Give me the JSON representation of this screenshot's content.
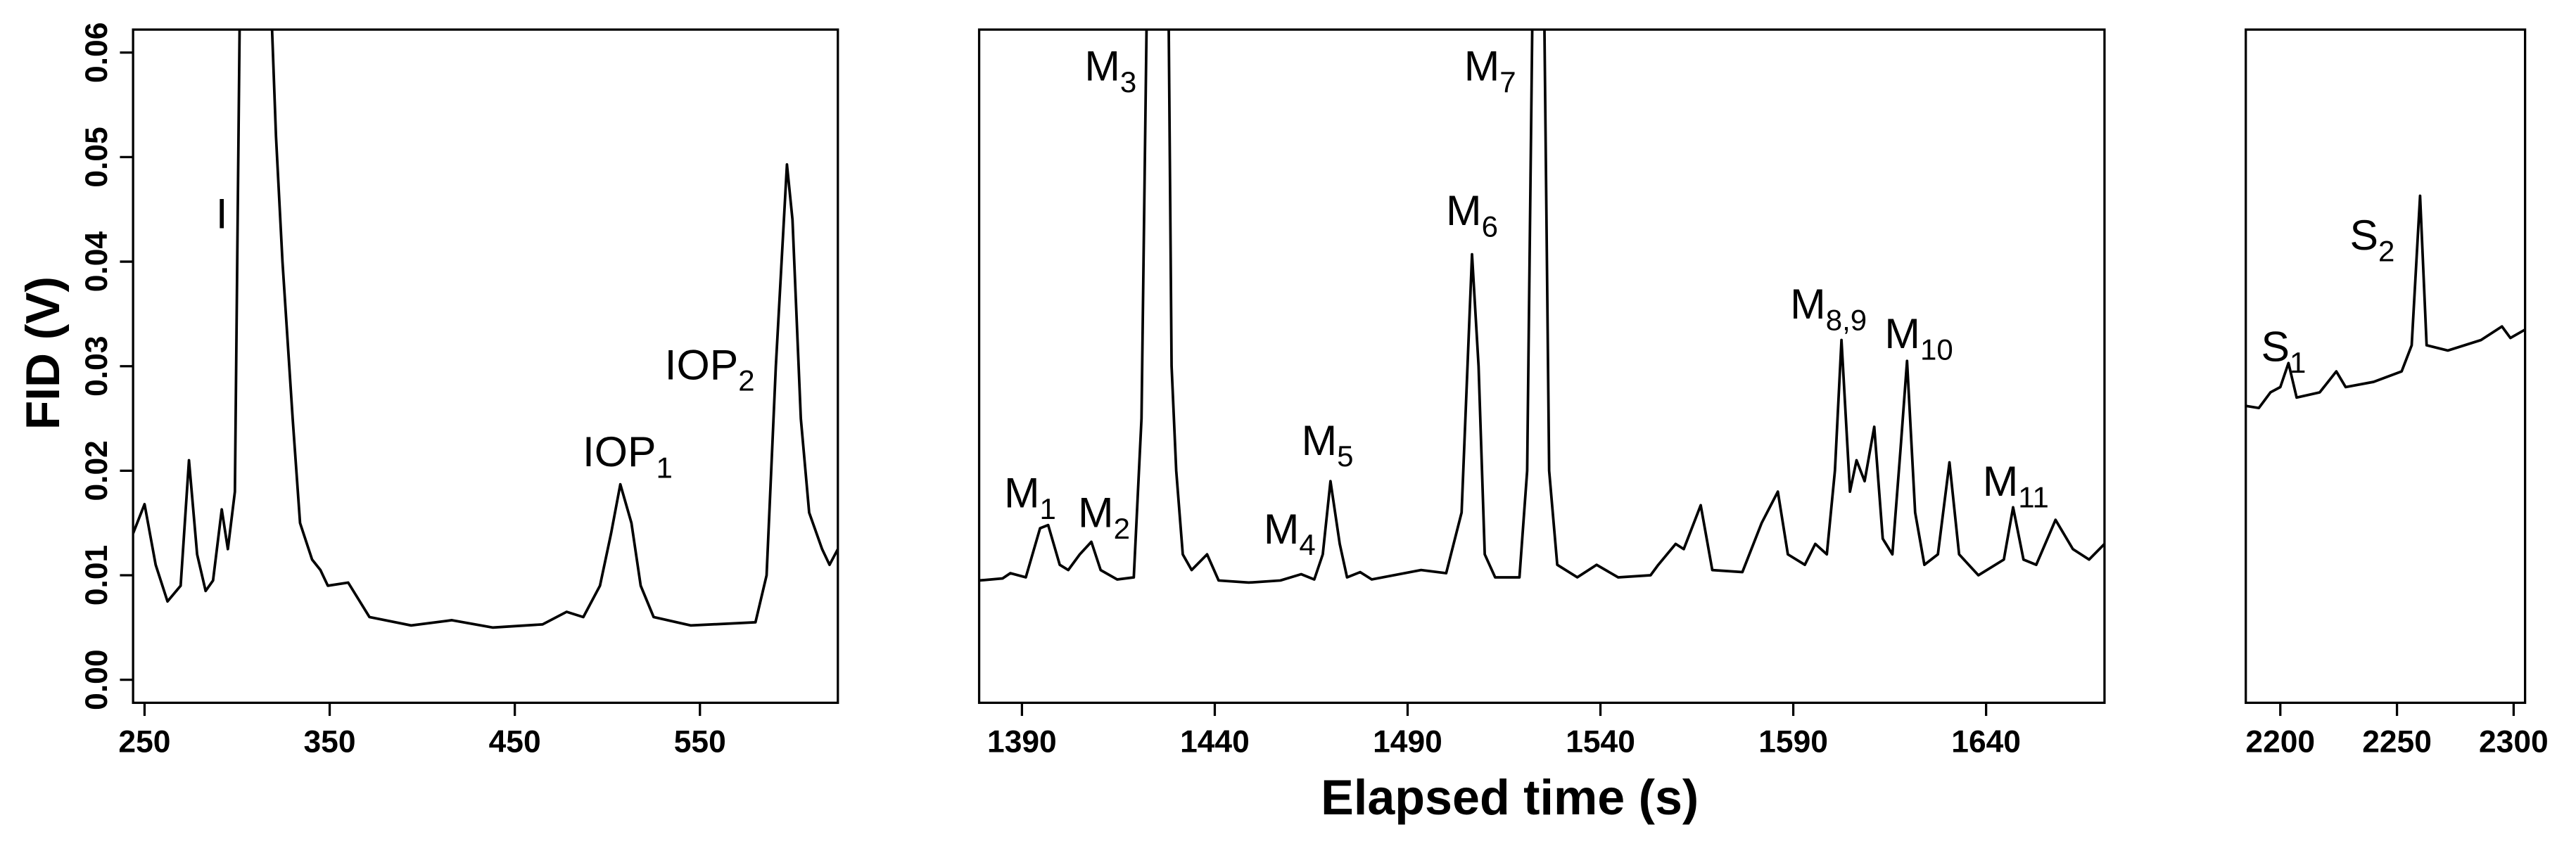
{
  "chart_data": [
    {
      "type": "line",
      "color": "#000000",
      "ylabel": "FID (V)",
      "xlim": [
        243.8,
        624.5
      ],
      "xticks": [
        250,
        350,
        450,
        550
      ],
      "ylim": [
        -0.0022,
        0.0622
      ],
      "yticks": [
        {
          "value": 0,
          "label": "0.00"
        },
        0.01,
        0.02,
        0.03,
        0.04,
        0.05,
        0.06
      ],
      "x": [
        243.8,
        250,
        256,
        262.4,
        269.5,
        274,
        278.4,
        283,
        287,
        291.7,
        295,
        298.8,
        301.5,
        318.3,
        321,
        324.5,
        330,
        334,
        340.5,
        345,
        349,
        360,
        371.5,
        394,
        416,
        438,
        465,
        478,
        487,
        496,
        502,
        507,
        513,
        518,
        525,
        545,
        580,
        586,
        591,
        597,
        600,
        604.5,
        609,
        616,
        620,
        624.5
      ],
      "values": [
        0.014,
        0.0168,
        0.011,
        0.0075,
        0.009,
        0.021,
        0.012,
        0.0085,
        0.0095,
        0.0163,
        0.0125,
        0.018,
        0.065,
        0.065,
        0.052,
        0.04,
        0.025,
        0.015,
        0.0115,
        0.0105,
        0.009,
        0.0093,
        0.006,
        0.0052,
        0.0057,
        0.005,
        0.0053,
        0.0065,
        0.006,
        0.009,
        0.014,
        0.0187,
        0.015,
        0.009,
        0.006,
        0.0052,
        0.0055,
        0.01,
        0.03,
        0.0493,
        0.044,
        0.025,
        0.016,
        0.0125,
        0.011,
        0.0125
      ],
      "annotations": [
        {
          "text": "I"
        },
        {
          "text": "IOP",
          "sub": "1"
        },
        {
          "text": "IOP",
          "sub": "2"
        }
      ]
    },
    {
      "type": "line",
      "color": "#000000",
      "xlabel": "Elapsed time (s)",
      "xlim": [
        1378.9,
        1670.7
      ],
      "xticks": [
        1390,
        1440,
        1490,
        1540,
        1590,
        1640
      ],
      "ylim": [
        -0.0022,
        0.0622
      ],
      "x": [
        1378.9,
        1385,
        1387,
        1391,
        1394.7,
        1396.8,
        1399.8,
        1402,
        1405,
        1408,
        1410.4,
        1414.7,
        1419,
        1421,
        1422.4,
        1428,
        1428.8,
        1430,
        1431.7,
        1434,
        1438,
        1441,
        1448.8,
        1457,
        1462.4,
        1465.8,
        1468,
        1470,
        1472.4,
        1474.3,
        1477.7,
        1480.7,
        1493.5,
        1500,
        1504,
        1506.7,
        1508.4,
        1510,
        1512.7,
        1519,
        1521,
        1522.4,
        1525.4,
        1526.7,
        1528.8,
        1534,
        1539,
        1544.6,
        1553,
        1555,
        1559.5,
        1561.6,
        1566,
        1569,
        1576.8,
        1581.8,
        1586,
        1588.6,
        1593,
        1595.7,
        1598.7,
        1600.8,
        1602.5,
        1604.7,
        1606.4,
        1608.5,
        1611,
        1613.2,
        1615.7,
        1617.8,
        1619.5,
        1621.6,
        1624,
        1627.5,
        1630.5,
        1633,
        1638,
        1644.6,
        1647,
        1649.7,
        1653,
        1658,
        1662.5,
        1666.7,
        1670.7
      ],
      "values": [
        0.0095,
        0.0097,
        0.0102,
        0.0098,
        0.0145,
        0.0148,
        0.011,
        0.0105,
        0.012,
        0.0132,
        0.0105,
        0.0096,
        0.0098,
        0.025,
        0.065,
        0.065,
        0.03,
        0.02,
        0.012,
        0.0105,
        0.012,
        0.0095,
        0.0093,
        0.0095,
        0.0101,
        0.0096,
        0.012,
        0.019,
        0.013,
        0.0098,
        0.0103,
        0.0096,
        0.0105,
        0.0102,
        0.016,
        0.0407,
        0.03,
        0.012,
        0.0098,
        0.0098,
        0.02,
        0.065,
        0.065,
        0.02,
        0.011,
        0.0098,
        0.011,
        0.0098,
        0.01,
        0.011,
        0.013,
        0.0125,
        0.0167,
        0.0105,
        0.0103,
        0.015,
        0.018,
        0.012,
        0.011,
        0.013,
        0.012,
        0.02,
        0.0325,
        0.018,
        0.021,
        0.019,
        0.0242,
        0.0135,
        0.012,
        0.022,
        0.0305,
        0.016,
        0.011,
        0.012,
        0.0208,
        0.012,
        0.01,
        0.0115,
        0.0165,
        0.0115,
        0.011,
        0.0153,
        0.0125,
        0.0115,
        0.013
      ],
      "annotations": [
        {
          "text": "M",
          "sub": "1"
        },
        {
          "text": "M",
          "sub": "2"
        },
        {
          "text": "M",
          "sub": "3"
        },
        {
          "text": "M",
          "sub": "4"
        },
        {
          "text": "M",
          "sub": "5"
        },
        {
          "text": "M",
          "sub": "6"
        },
        {
          "text": "M",
          "sub": "7"
        },
        {
          "text": "M",
          "sub": "8,9"
        },
        {
          "text": "M",
          "sub": "10"
        },
        {
          "text": "M",
          "sub": "11"
        }
      ]
    },
    {
      "type": "line",
      "color": "#000000",
      "xlim": [
        2185.2,
        2304.9
      ],
      "xticks": [
        2200,
        2250,
        2300
      ],
      "ylim": [
        -0.0022,
        0.0622
      ],
      "x": [
        2185.2,
        2190.8,
        2195.8,
        2200,
        2203.5,
        2207,
        2216.9,
        2224,
        2228,
        2240,
        2252,
        2256.3,
        2259.9,
        2262.7,
        2271.8,
        2286,
        2295,
        2298.6,
        2304.9
      ],
      "values": [
        0.0262,
        0.026,
        0.0275,
        0.028,
        0.0303,
        0.027,
        0.0275,
        0.0295,
        0.028,
        0.0285,
        0.0295,
        0.032,
        0.0463,
        0.032,
        0.0315,
        0.0325,
        0.0338,
        0.0327,
        0.0335
      ],
      "annotations": [
        {
          "text": "S",
          "sub": "1"
        },
        {
          "text": "S",
          "sub": "2"
        }
      ]
    }
  ]
}
